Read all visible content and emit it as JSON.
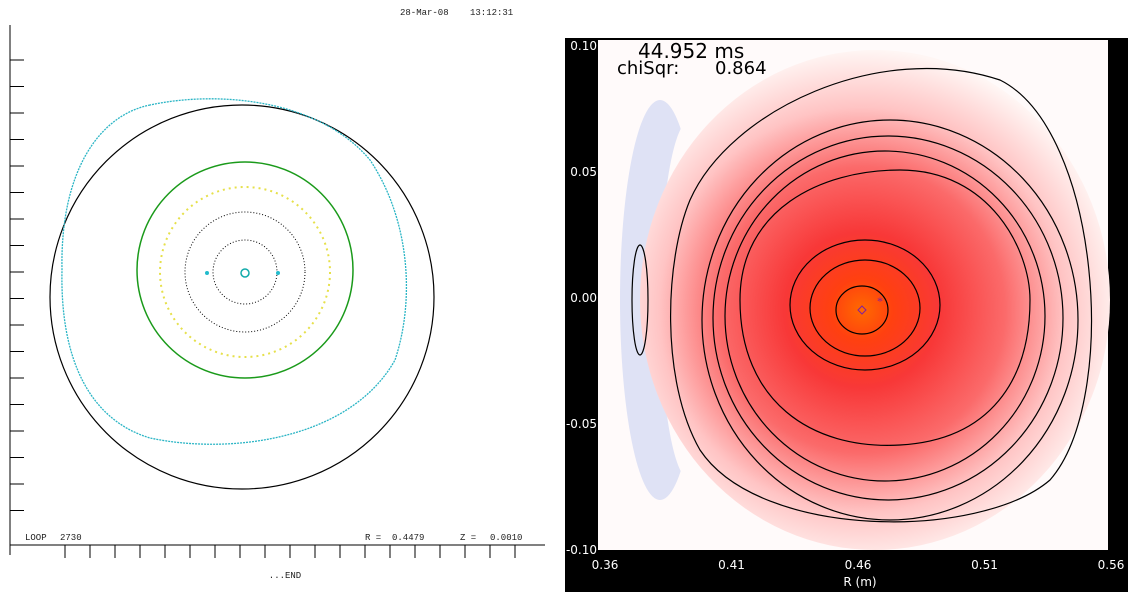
{
  "left_panel": {
    "date": "28-Mar-08",
    "time": "13:12:31",
    "loop_label": "LOOP",
    "loop_number": "2730",
    "r_label": "R =",
    "r_value": "0.4479",
    "z_label": "Z =",
    "z_value": "0.0010",
    "footer": "...END"
  },
  "right_panel": {
    "time_label": "44.952 ms",
    "chisq_label": "chiSqr:",
    "chisq_value": "0.864",
    "x_label": "R (m)",
    "x_tick_labels": [
      "0.36",
      "0.41",
      "0.46",
      "0.51",
      "0.56"
    ],
    "y_tick_labels": [
      "0.10",
      "0.05",
      "0.00",
      "-0.05",
      "-0.10"
    ]
  }
}
